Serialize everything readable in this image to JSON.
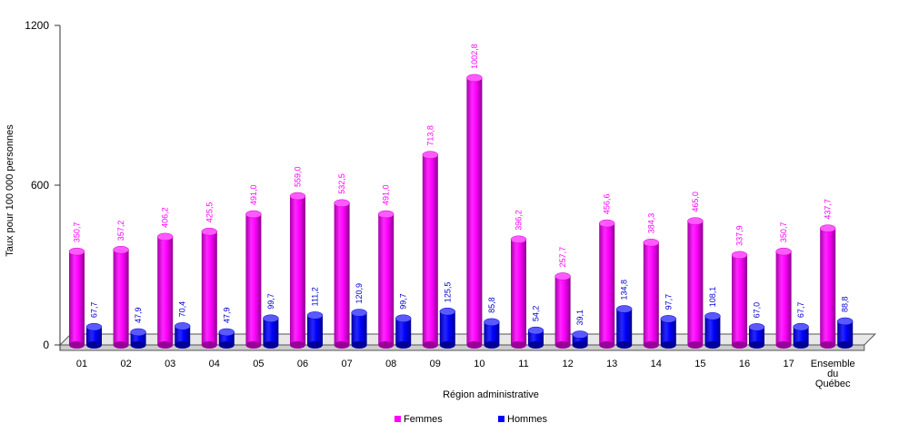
{
  "chart_data": {
    "type": "bar",
    "xlabel": "Région administrative",
    "ylabel": "Taux pour 100 000 personnes",
    "ylim": [
      0,
      1200
    ],
    "yticks": [
      "0",
      "600",
      "1200"
    ],
    "categories": [
      [
        "01"
      ],
      [
        "02"
      ],
      [
        "03"
      ],
      [
        "04"
      ],
      [
        "05"
      ],
      [
        "06"
      ],
      [
        "07"
      ],
      [
        "08"
      ],
      [
        "09"
      ],
      [
        "10"
      ],
      [
        "11"
      ],
      [
        "12"
      ],
      [
        "13"
      ],
      [
        "14"
      ],
      [
        "15"
      ],
      [
        "16"
      ],
      [
        "17"
      ],
      [
        "Ensemble",
        "du",
        "Québec"
      ]
    ],
    "series": [
      {
        "name": "Femmes",
        "color": "#ff00ff",
        "labelColor": "#ff00ff",
        "values": [
          350.7,
          357.2,
          406.2,
          425.5,
          491.0,
          559.0,
          532.5,
          491.0,
          713.8,
          1002.8,
          396.2,
          257.7,
          456.6,
          384.3,
          465.0,
          337.9,
          350.7,
          437.7
        ],
        "labels": [
          "350,7",
          "357,2",
          "406,2",
          "425,5",
          "491,0",
          "559,0",
          "532,5",
          "491,0",
          "713,8",
          "1002,8",
          "396,2",
          "257,7",
          "456,6",
          "384,3",
          "465,0",
          "337,9",
          "350,7",
          "437,7"
        ]
      },
      {
        "name": "Hommes",
        "color": "#0000ff",
        "labelColor": "#0000cc",
        "values": [
          67.7,
          47.9,
          70.4,
          47.9,
          99.7,
          111.2,
          120.9,
          99.7,
          125.5,
          85.8,
          54.2,
          39.1,
          134.8,
          97.7,
          108.1,
          67.0,
          67.7,
          88.8
        ],
        "labels": [
          "67,7",
          "47,9",
          "70,4",
          "47,9",
          "99,7",
          "111,2",
          "120,9",
          "99,7",
          "125,5",
          "85,8",
          "54,2",
          "39,1",
          "134,8",
          "97,7",
          "108,1",
          "67,0",
          "67,7",
          "88,8"
        ]
      }
    ],
    "legend": "bottom",
    "grid": false
  }
}
